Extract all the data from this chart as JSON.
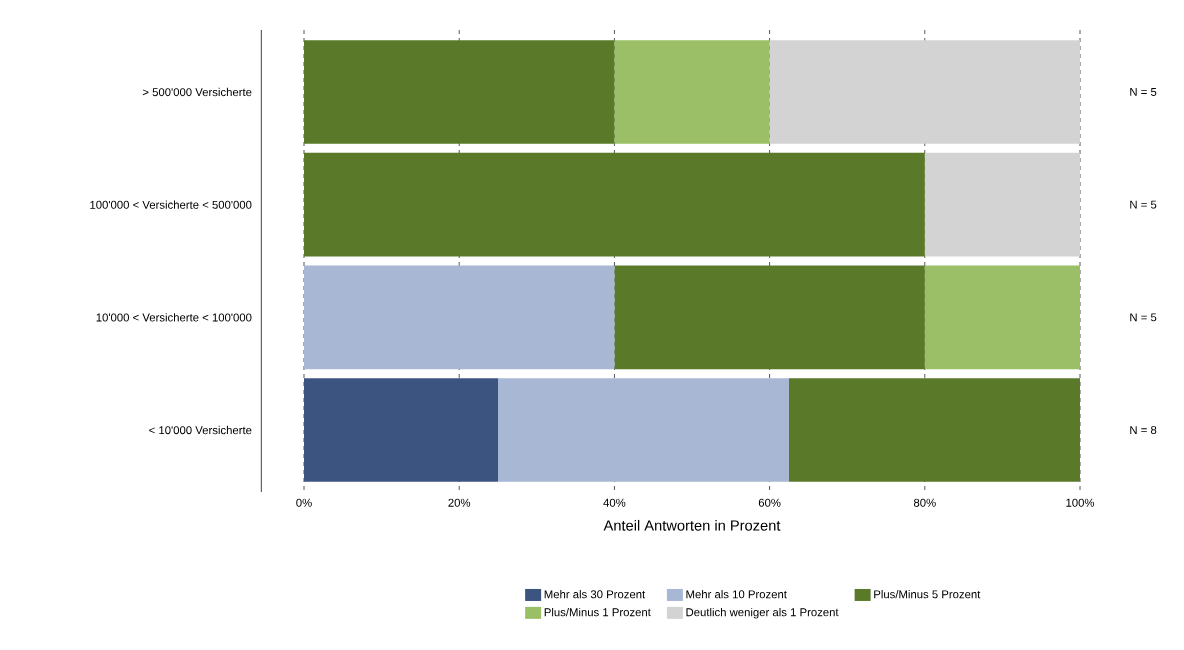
{
  "chart_data": {
    "type": "bar",
    "orientation": "horizontal",
    "stacked": true,
    "categories": [
      "> 500'000 Versicherte",
      "100'000 < Versicherte < 500'000",
      "10'000 < Versicherte < 100'000",
      "< 10'000 Versicherte"
    ],
    "series": [
      {
        "name": "Mehr als 30 Prozent",
        "color": "#3b5480",
        "values": [
          null,
          null,
          null,
          25
        ]
      },
      {
        "name": "Mehr als 10 Prozent",
        "color": "#a7b7d4",
        "values": [
          null,
          null,
          40,
          37.5
        ]
      },
      {
        "name": "Plus/Minus 5 Prozent",
        "color": "#5a7a2a",
        "values": [
          40,
          80,
          40,
          37.5
        ]
      },
      {
        "name": "Plus/Minus 1 Prozent",
        "color": "#9bbf66",
        "values": [
          20,
          null,
          20,
          null
        ]
      },
      {
        "name": "Deutlich weniger als 1 Prozent",
        "color": "#d3d3d3",
        "values": [
          40,
          20,
          null,
          null
        ]
      }
    ],
    "xlim": [
      0,
      100
    ],
    "xticks": [
      {
        "value": 0,
        "label": "0%"
      },
      {
        "value": 20,
        "label": "20%"
      },
      {
        "value": 40,
        "label": "40%"
      },
      {
        "value": 60,
        "label": "60%"
      },
      {
        "value": 80,
        "label": "80%"
      },
      {
        "value": 100,
        "label": "100%"
      }
    ],
    "xlabel": "Anteil Antworten in Prozent",
    "grid": "x",
    "legend": "bottom",
    "annotations": [
      "N = 5",
      "N = 5",
      "N = 5",
      "N = 8"
    ]
  }
}
